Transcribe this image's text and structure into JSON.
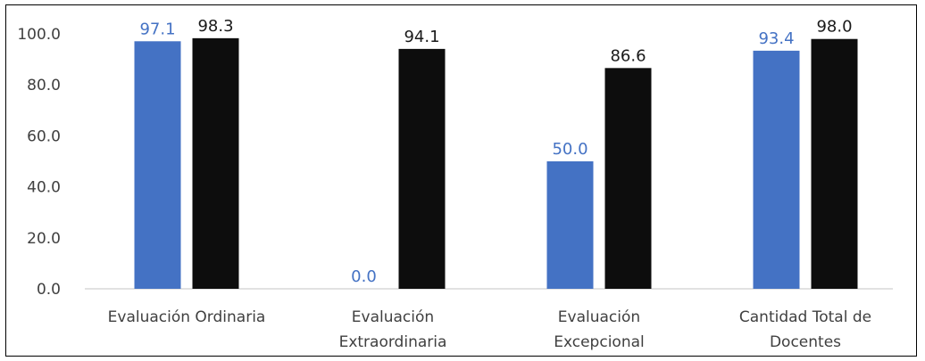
{
  "chart_data": {
    "type": "bar",
    "categories": [
      [
        "Evaluación Ordinaria"
      ],
      [
        "Evaluación",
        "Extraordinaria"
      ],
      [
        "Evaluación",
        "Excepcional"
      ],
      [
        "Cantidad Total de",
        "Docentes"
      ]
    ],
    "series": [
      {
        "values": [
          97.1,
          0.0,
          50.0,
          93.4
        ],
        "color": "#4472C4",
        "label_color": "#4472C4"
      },
      {
        "values": [
          98.3,
          94.1,
          86.6,
          98.0
        ],
        "color": "#0D0D0D",
        "label_color": "#1a1a1a"
      }
    ],
    "yticks": [
      "0.0",
      "20.0",
      "40.0",
      "60.0",
      "80.0",
      "100.0"
    ],
    "ylim": [
      0,
      100
    ],
    "grid": false,
    "legend": "none"
  }
}
